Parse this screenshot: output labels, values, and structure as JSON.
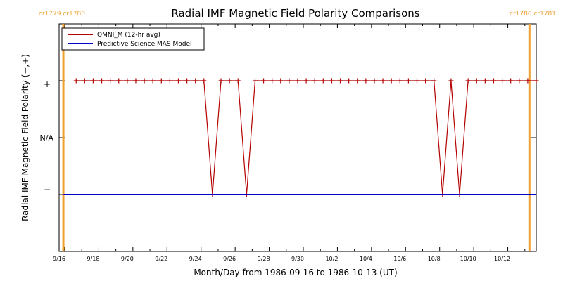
{
  "chart_data": {
    "type": "line",
    "title": "Radial IMF Magnetic Field Polarity Comparisons",
    "xlabel": "Month/Day from 1986-09-16 to 1986-10-13 (UT)",
    "ylabel": "Radial IMF Magnetic Field Polarity (−,+)",
    "x_tick_labels": [
      "9/16",
      "9/18",
      "9/20",
      "9/22",
      "9/24",
      "9/26",
      "9/28",
      "9/30",
      "10/2",
      "10/4",
      "10/6",
      "10/8",
      "10/10",
      "10/12"
    ],
    "y_tick_labels": [
      "+",
      "N/A",
      "−"
    ],
    "xlim_days": [
      0,
      28
    ],
    "ylim": [
      -2,
      2
    ],
    "carrington_markers": [
      {
        "label": "cr1779 cr1780",
        "x_day": 0.25,
        "position": "left"
      },
      {
        "label": "cr1780 cr1781",
        "x_day": 27.6,
        "position": "right"
      }
    ],
    "legend": {
      "placement": "top-left"
    },
    "series": [
      {
        "name": "OMNI_M (12-hr avg)",
        "color": "#b40000",
        "marker": "plus",
        "x_days": [
          1,
          1.5,
          2,
          2.5,
          3,
          3.5,
          4,
          4.5,
          5,
          5.5,
          6,
          6.5,
          7,
          7.5,
          8,
          8.5,
          9,
          9.5,
          10,
          10.5,
          11,
          11.5,
          12,
          12.5,
          13,
          13.5,
          14,
          14.5,
          15,
          15.5,
          16,
          16.5,
          17,
          17.5,
          18,
          18.5,
          19,
          19.5,
          20,
          20.5,
          21,
          21.5,
          22,
          22.5,
          23,
          23.5,
          24,
          24.5,
          25,
          25.5,
          26,
          26.5,
          27,
          27.5,
          28
        ],
        "values": [
          1,
          1,
          1,
          1,
          1,
          1,
          1,
          1,
          1,
          1,
          1,
          1,
          1,
          1,
          1,
          1,
          -1,
          1,
          1,
          1,
          -1,
          1,
          1,
          1,
          1,
          1,
          1,
          1,
          1,
          1,
          1,
          1,
          1,
          1,
          1,
          1,
          1,
          1,
          1,
          1,
          1,
          1,
          1,
          -1,
          1,
          -1,
          1,
          1,
          1,
          1,
          1,
          1,
          1,
          1,
          1
        ]
      },
      {
        "name": "Predictive Science MAS Model",
        "color": "#0000c8",
        "x_days": [
          0.25,
          28
        ],
        "values": [
          -1,
          -1
        ]
      }
    ],
    "colors": {
      "carrington_marker": "#f0a030",
      "axes": "#000000"
    }
  }
}
